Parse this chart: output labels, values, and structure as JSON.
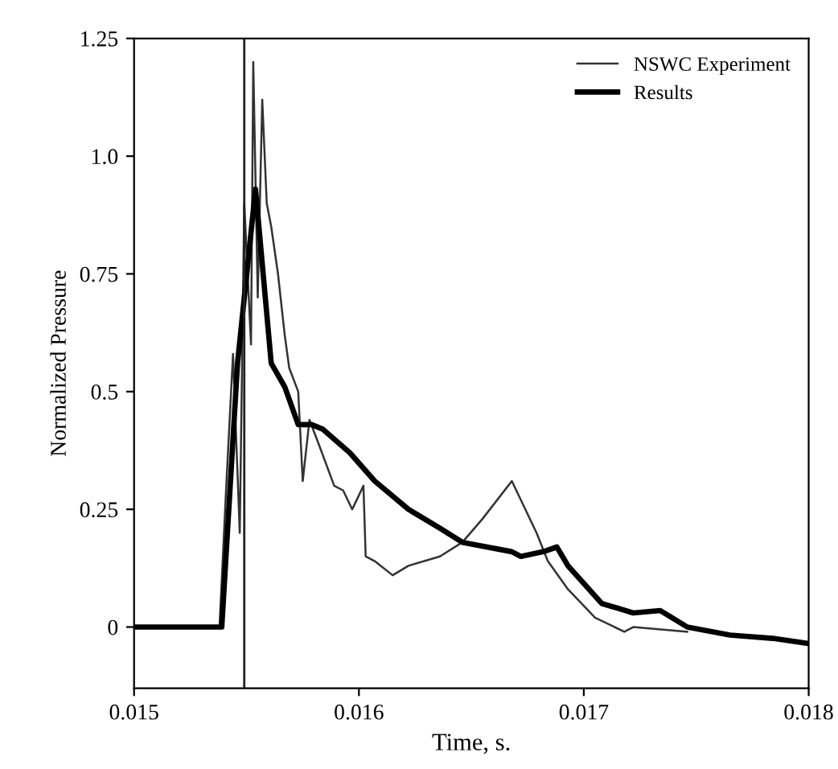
{
  "chart_data": {
    "type": "line",
    "xlabel": "Time, s.",
    "ylabel": "Normalized Pressure",
    "xlim": [
      0.015,
      0.018
    ],
    "xticks": [
      0.015,
      0.016,
      0.017,
      0.018
    ],
    "ylim": [
      -0.13,
      1.25
    ],
    "yticks": [
      0,
      0.25,
      0.5,
      0.75,
      {
        "value": 1.0,
        "label": "1.0"
      },
      1.25
    ],
    "grid": false,
    "legend": "top right",
    "line_style": "solid",
    "ref_lines": [
      {
        "axis": "x",
        "value": 0.01549,
        "label": null,
        "color": "#222222"
      }
    ],
    "series": [
      {
        "name": "NSWC Experiment",
        "color": "#333333",
        "x": [
          0.015,
          0.01538,
          0.01541,
          0.01544,
          0.01547,
          0.01549,
          0.01552,
          0.01553,
          0.01555,
          0.01557,
          0.01559,
          0.01561,
          0.01564,
          0.01567,
          0.01569,
          0.01573,
          0.01575,
          0.01578,
          0.01582,
          0.01589,
          0.01593,
          0.01597,
          0.01602,
          0.01603,
          0.01607,
          0.01615,
          0.01622,
          0.01636,
          0.01646,
          0.01655,
          0.01668,
          0.01679,
          0.01684,
          0.01693,
          0.01705,
          0.01718,
          0.01722,
          0.01746
        ],
        "values": [
          0,
          0,
          0.3,
          0.58,
          0.2,
          0.9,
          0.6,
          1.2,
          0.7,
          1.12,
          0.9,
          0.85,
          0.75,
          0.62,
          0.55,
          0.5,
          0.31,
          0.44,
          0.39,
          0.3,
          0.29,
          0.25,
          0.3,
          0.15,
          0.14,
          0.11,
          0.13,
          0.15,
          0.18,
          0.23,
          0.31,
          0.2,
          0.14,
          0.08,
          0.02,
          -0.01,
          0,
          -0.01
        ]
      },
      {
        "name": "Results",
        "color": "#000000",
        "x": [
          0.015,
          0.01539,
          0.01546,
          0.01554,
          0.01561,
          0.01567,
          0.01573,
          0.01579,
          0.01584,
          0.01596,
          0.01607,
          0.01622,
          0.01636,
          0.01646,
          0.01668,
          0.01672,
          0.01682,
          0.01688,
          0.01693,
          0.01708,
          0.01722,
          0.01734,
          0.01746,
          0.01765,
          0.01784,
          0.018
        ],
        "values": [
          0,
          0,
          0.56,
          0.93,
          0.56,
          0.51,
          0.43,
          0.43,
          0.42,
          0.37,
          0.31,
          0.25,
          0.21,
          0.18,
          0.16,
          0.15,
          0.16,
          0.17,
          0.13,
          0.05,
          0.03,
          0.035,
          0,
          -0.017,
          -0.024,
          -0.035
        ]
      }
    ]
  }
}
